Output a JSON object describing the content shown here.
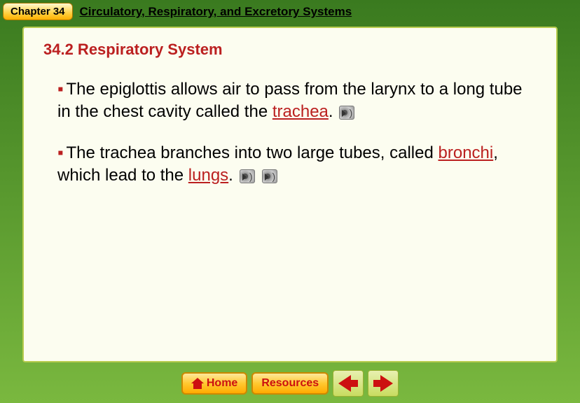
{
  "header": {
    "chapter_badge": "Chapter 34",
    "chapter_title": "Circulatory, Respiratory, and Excretory Systems"
  },
  "section": {
    "title": "34.2 Respiratory System"
  },
  "bullets": [
    {
      "pre": "The epiglottis allows air to pass from the larynx to a long tube in the chest cavity called the ",
      "vocab1": "trachea",
      "mid": "",
      "vocab2": "",
      "post": "",
      "speakers": 1
    },
    {
      "pre": "The trachea branches into two large tubes, called ",
      "vocab1": "bronchi",
      "mid": ", which lead to the ",
      "vocab2": "lungs",
      "post": "",
      "speakers": 2
    }
  ],
  "footer": {
    "home_label": "Home",
    "resources_label": "Resources"
  },
  "style": {
    "bg_gradient": [
      "#3a7a1f",
      "#5a9a2f",
      "#7ab83f"
    ],
    "content_bg": "#fcfdf0",
    "content_border": "#b8cc50",
    "accent_red": "#bb2020",
    "badge_gradient": [
      "#fff8d0",
      "#ffd040",
      "#ffb000"
    ],
    "nav_btn_gradient": [
      "#ffe89a",
      "#ffc830",
      "#ffaa00"
    ],
    "arrow_btn_gradient": [
      "#e8f0b0",
      "#c8dc60"
    ],
    "title_fontsize": 22,
    "body_fontsize": 24
  }
}
